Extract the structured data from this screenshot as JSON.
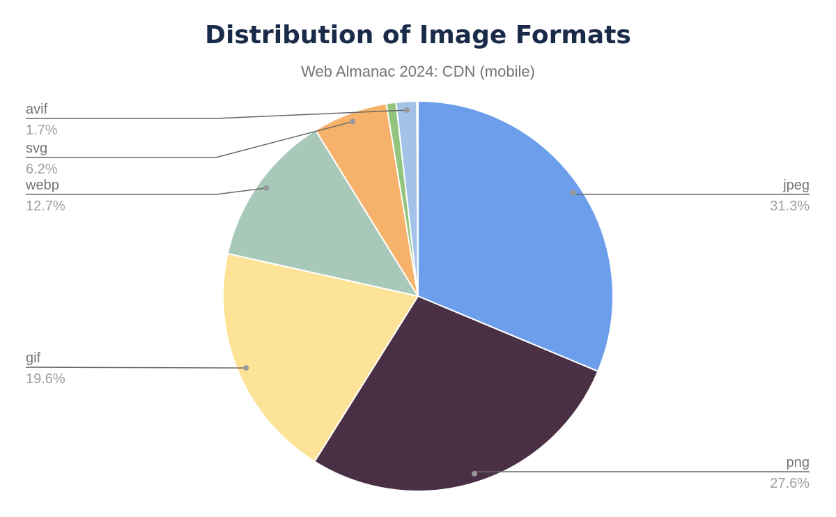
{
  "chart_data": {
    "type": "pie",
    "title": "Distribution of Image Formats",
    "subtitle": "Web Almanac 2024: CDN (mobile)",
    "slices": [
      {
        "name": "jpeg",
        "label": "31.3%",
        "value": 31.3,
        "color": "#6d9eeb"
      },
      {
        "name": "png",
        "label": "27.6%",
        "value": 27.6,
        "color": "#4a3044"
      },
      {
        "name": "gif",
        "label": "19.6%",
        "value": 19.6,
        "color": "#fde398"
      },
      {
        "name": "webp",
        "label": "12.7%",
        "value": 12.7,
        "color": "#a8c8b9"
      },
      {
        "name": "svg",
        "label": "6.2%",
        "value": 6.2,
        "color": "#f6b26b"
      },
      {
        "name": "",
        "label": "",
        "value": 0.8,
        "color": "#93c47d"
      },
      {
        "name": "avif",
        "label": "1.7%",
        "value": 1.7,
        "color": "#a4c2e8"
      }
    ],
    "start_angle": "12 o'clock, clockwise",
    "legend": "none (leader-line labels)"
  }
}
